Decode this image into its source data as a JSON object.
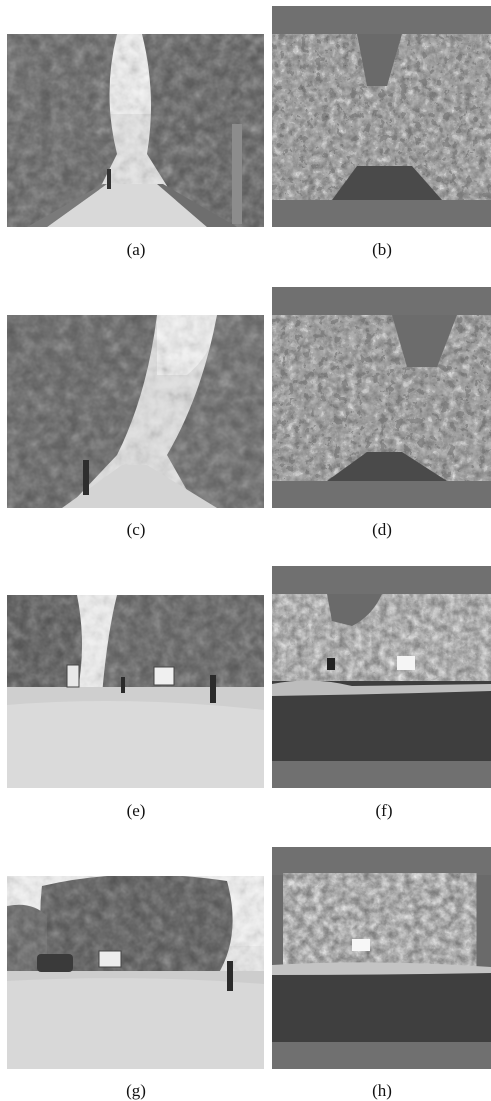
{
  "panels": [
    {
      "id": "a",
      "caption": "(a)",
      "kind": "photo",
      "scene": "tree-lined-path"
    },
    {
      "id": "b",
      "caption": "(b)",
      "kind": "processed",
      "scene": "tree-lined-path"
    },
    {
      "id": "c",
      "caption": "(c)",
      "kind": "photo",
      "scene": "tree-lined-path-pedestrian"
    },
    {
      "id": "d",
      "caption": "(d)",
      "kind": "processed",
      "scene": "tree-lined-path-pedestrian"
    },
    {
      "id": "e",
      "caption": "(e)",
      "kind": "photo",
      "scene": "open-road-with-signboards"
    },
    {
      "id": "f",
      "caption": "(f)",
      "kind": "processed",
      "scene": "open-road-with-signboards"
    },
    {
      "id": "g",
      "caption": "(g)",
      "kind": "photo",
      "scene": "parking-area-with-car"
    },
    {
      "id": "h",
      "caption": "(h)",
      "kind": "processed",
      "scene": "parking-area-with-car"
    }
  ],
  "colors": {
    "processed_band": "#6f6f6f",
    "processed_road": "#4a4a4a",
    "photo_sky": "#f2f2f2",
    "foliage_dark": "#3b3b3b",
    "foliage_light": "#9a9a9a"
  }
}
